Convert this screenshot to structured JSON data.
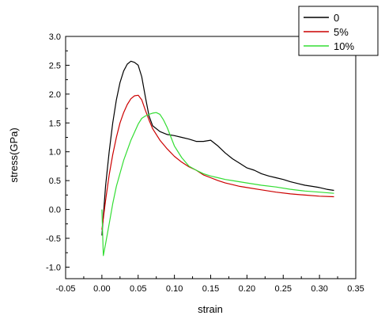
{
  "chart_data": {
    "type": "line",
    "title": "",
    "xlabel": "strain",
    "ylabel": "stress(GPa)",
    "xlim": [
      -0.05,
      0.35
    ],
    "ylim": [
      -1.2,
      3.0
    ],
    "x_ticks": [
      -0.05,
      0.0,
      0.05,
      0.1,
      0.15,
      0.2,
      0.25,
      0.3,
      0.35
    ],
    "x_tick_labels": [
      "-0.05",
      "0.00",
      "0.05",
      "0.10",
      "0.15",
      "0.20",
      "0.25",
      "0.30",
      "0.35"
    ],
    "y_ticks": [
      -1.0,
      -0.5,
      0.0,
      0.5,
      1.0,
      1.5,
      2.0,
      2.5,
      3.0
    ],
    "y_tick_labels": [
      "-1.0",
      "-0.5",
      "0.0",
      "0.5",
      "1.0",
      "1.5",
      "2.0",
      "2.5",
      "3.0"
    ],
    "grid": false,
    "legend_position": "top-right",
    "series": [
      {
        "name": "0",
        "color": "#000000",
        "x": [
          0.0,
          0.005,
          0.01,
          0.015,
          0.02,
          0.025,
          0.03,
          0.035,
          0.04,
          0.045,
          0.05,
          0.055,
          0.06,
          0.065,
          0.07,
          0.08,
          0.09,
          0.1,
          0.11,
          0.12,
          0.13,
          0.14,
          0.15,
          0.16,
          0.17,
          0.18,
          0.19,
          0.2,
          0.21,
          0.22,
          0.23,
          0.24,
          0.25,
          0.26,
          0.27,
          0.28,
          0.29,
          0.3,
          0.31,
          0.32
        ],
        "y": [
          -0.45,
          0.4,
          1.0,
          1.5,
          1.9,
          2.2,
          2.4,
          2.52,
          2.57,
          2.55,
          2.5,
          2.3,
          1.95,
          1.62,
          1.45,
          1.35,
          1.3,
          1.28,
          1.25,
          1.22,
          1.18,
          1.18,
          1.2,
          1.1,
          0.98,
          0.88,
          0.8,
          0.72,
          0.68,
          0.62,
          0.58,
          0.55,
          0.52,
          0.48,
          0.45,
          0.42,
          0.4,
          0.38,
          0.35,
          0.33
        ]
      },
      {
        "name": "5%",
        "color": "#cc0000",
        "x": [
          0.0,
          0.005,
          0.01,
          0.015,
          0.02,
          0.025,
          0.03,
          0.035,
          0.04,
          0.045,
          0.05,
          0.055,
          0.06,
          0.065,
          0.07,
          0.08,
          0.09,
          0.1,
          0.11,
          0.12,
          0.13,
          0.14,
          0.15,
          0.16,
          0.17,
          0.18,
          0.19,
          0.2,
          0.22,
          0.24,
          0.26,
          0.28,
          0.3,
          0.32
        ],
        "y": [
          -0.35,
          0.15,
          0.6,
          0.95,
          1.25,
          1.5,
          1.68,
          1.82,
          1.92,
          1.97,
          1.98,
          1.9,
          1.72,
          1.55,
          1.4,
          1.2,
          1.05,
          0.92,
          0.82,
          0.74,
          0.68,
          0.6,
          0.55,
          0.5,
          0.46,
          0.43,
          0.4,
          0.38,
          0.34,
          0.3,
          0.27,
          0.25,
          0.23,
          0.22
        ]
      },
      {
        "name": "10%",
        "color": "#33dd33",
        "x": [
          0.0,
          0.002,
          0.005,
          0.01,
          0.015,
          0.02,
          0.03,
          0.04,
          0.05,
          0.055,
          0.06,
          0.065,
          0.07,
          0.075,
          0.08,
          0.085,
          0.09,
          0.1,
          0.11,
          0.12,
          0.13,
          0.14,
          0.15,
          0.16,
          0.17,
          0.18,
          0.19,
          0.2,
          0.22,
          0.24,
          0.26,
          0.28,
          0.3,
          0.32
        ],
        "y": [
          0.0,
          -0.8,
          -0.6,
          -0.25,
          0.1,
          0.4,
          0.85,
          1.2,
          1.48,
          1.58,
          1.62,
          1.65,
          1.67,
          1.68,
          1.65,
          1.55,
          1.42,
          1.1,
          0.9,
          0.75,
          0.68,
          0.62,
          0.58,
          0.55,
          0.52,
          0.5,
          0.48,
          0.46,
          0.42,
          0.39,
          0.35,
          0.32,
          0.3,
          0.28
        ]
      }
    ]
  }
}
